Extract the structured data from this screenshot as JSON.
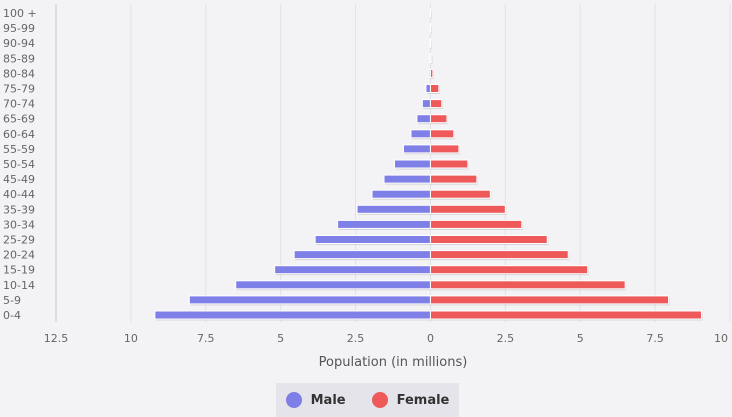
{
  "chart_data": {
    "type": "bar",
    "orientation": "horizontal",
    "layout": "population-pyramid",
    "categories": [
      "0-4",
      "5-9",
      "10-14",
      "15-19",
      "20-24",
      "25-29",
      "30-34",
      "35-39",
      "40-44",
      "45-49",
      "50-54",
      "55-59",
      "60-64",
      "65-69",
      "70-74",
      "75-79",
      "80-84",
      "85-89",
      "90-94",
      "95-99",
      "100 +"
    ],
    "series": [
      {
        "name": "Male",
        "color": "#7f7fe8",
        "values": [
          9.2,
          8.05,
          6.5,
          5.2,
          4.55,
          3.85,
          3.1,
          2.45,
          1.95,
          1.55,
          1.2,
          0.9,
          0.65,
          0.45,
          0.27,
          0.15,
          0.04,
          0.02,
          0.01,
          0.005,
          0.002
        ]
      },
      {
        "name": "Female",
        "color": "#ee5a5a",
        "values": [
          9.05,
          7.95,
          6.5,
          5.25,
          4.6,
          3.9,
          3.05,
          2.5,
          2.0,
          1.55,
          1.25,
          0.95,
          0.78,
          0.55,
          0.38,
          0.28,
          0.08,
          0.04,
          0.015,
          0.005,
          0.002
        ]
      }
    ],
    "x_ticks": [
      {
        "value": -12.5,
        "label": "12.5"
      },
      {
        "value": -10,
        "label": "10"
      },
      {
        "value": -7.5,
        "label": "7.5"
      },
      {
        "value": -5,
        "label": "5"
      },
      {
        "value": -2.5,
        "label": "2.5"
      },
      {
        "value": 0,
        "label": "0"
      },
      {
        "value": 2.5,
        "label": "2.5"
      },
      {
        "value": 5,
        "label": "5"
      },
      {
        "value": 7.5,
        "label": "7.5"
      },
      {
        "value": 10,
        "label": "10"
      }
    ],
    "xlim": [
      -12.5,
      10
    ],
    "xlabel": "Population (in millions)",
    "grid": true,
    "legend_position": "bottom-center"
  },
  "legend": {
    "male": {
      "label": "Male",
      "color": "#7f7fe8"
    },
    "female": {
      "label": "Female",
      "color": "#ee5a5a"
    }
  }
}
